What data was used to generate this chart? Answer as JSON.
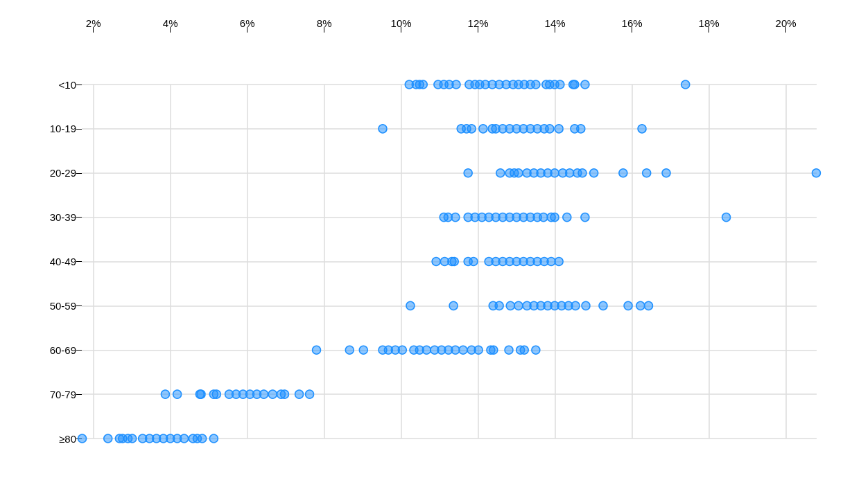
{
  "chart_data": {
    "type": "scatter",
    "orientation": "horizontal",
    "categories": [
      "<10",
      "10-19",
      "20-29",
      "30-39",
      "40-49",
      "50-59",
      "60-69",
      "70-79",
      "≥80"
    ],
    "xlim": [
      1.7,
      20.8
    ],
    "xticks": [
      {
        "value": 2,
        "label": "2%"
      },
      {
        "value": 4,
        "label": "4%"
      },
      {
        "value": 6,
        "label": "6%"
      },
      {
        "value": 8,
        "label": "8%"
      },
      {
        "value": 10,
        "label": "10%"
      },
      {
        "value": 12,
        "label": "12%"
      },
      {
        "value": 14,
        "label": "14%"
      },
      {
        "value": 16,
        "label": "16%"
      },
      {
        "value": 18,
        "label": "18%"
      },
      {
        "value": 20,
        "label": "20%"
      }
    ],
    "grid": true,
    "marker": "circle",
    "series": [
      {
        "color": "#1e90ff",
        "x": [
          "<10",
          "<10",
          "<10",
          "<10",
          "<10",
          "<10",
          "<10",
          "<10",
          "<10",
          "<10",
          "<10",
          "<10",
          "<10",
          "<10",
          "<10",
          "<10",
          "<10",
          "<10",
          "<10",
          "<10",
          "<10",
          "<10",
          "<10",
          "<10",
          "<10",
          "<10",
          "<10",
          "<10",
          "10-19",
          "10-19",
          "10-19",
          "10-19",
          "10-19",
          "10-19",
          "10-19",
          "10-19",
          "10-19",
          "10-19",
          "10-19",
          "10-19",
          "10-19",
          "10-19",
          "10-19",
          "10-19",
          "10-19",
          "10-19",
          "10-19",
          "20-29",
          "20-29",
          "20-29",
          "20-29",
          "20-29",
          "20-29",
          "20-29",
          "20-29",
          "20-29",
          "20-29",
          "20-29",
          "20-29",
          "20-29",
          "20-29",
          "20-29",
          "20-29",
          "20-29",
          "20-29",
          "20-29",
          "30-39",
          "30-39",
          "30-39",
          "30-39",
          "30-39",
          "30-39",
          "30-39",
          "30-39",
          "30-39",
          "30-39",
          "30-39",
          "30-39",
          "30-39",
          "30-39",
          "30-39",
          "30-39",
          "30-39",
          "30-39",
          "30-39",
          "30-39",
          "40-49",
          "40-49",
          "40-49",
          "40-49",
          "40-49",
          "40-49",
          "40-49",
          "40-49",
          "40-49",
          "40-49",
          "40-49",
          "40-49",
          "40-49",
          "40-49",
          "40-49",
          "40-49",
          "40-49",
          "50-59",
          "50-59",
          "50-59",
          "50-59",
          "50-59",
          "50-59",
          "50-59",
          "50-59",
          "50-59",
          "50-59",
          "50-59",
          "50-59",
          "50-59",
          "50-59",
          "50-59",
          "50-59",
          "50-59",
          "50-59",
          "50-59",
          "60-69",
          "60-69",
          "60-69",
          "60-69",
          "60-69",
          "60-69",
          "60-69",
          "60-69",
          "60-69",
          "60-69",
          "60-69",
          "60-69",
          "60-69",
          "60-69",
          "60-69",
          "60-69",
          "60-69",
          "60-69",
          "60-69",
          "60-69",
          "60-69",
          "60-69",
          "60-69",
          "70-79",
          "70-79",
          "70-79",
          "70-79",
          "70-79",
          "70-79",
          "70-79",
          "70-79",
          "70-79",
          "70-79",
          "70-79",
          "70-79",
          "70-79",
          "70-79",
          "70-79",
          "70-79",
          "70-79",
          "≥80",
          "≥80",
          "≥80",
          "≥80",
          "≥80",
          "≥80",
          "≥80",
          "≥80",
          "≥80",
          "≥80",
          "≥80",
          "≥80",
          "≥80",
          "≥80",
          "≥80",
          "≥80",
          "≥80"
        ],
        "values": [
          10.21,
          10.39,
          10.48,
          10.57,
          10.96,
          11.11,
          11.25,
          11.43,
          11.77,
          11.92,
          12.04,
          12.19,
          12.37,
          12.55,
          12.73,
          12.91,
          13.05,
          13.2,
          13.36,
          13.5,
          13.77,
          13.86,
          13.99,
          14.13,
          14.47,
          14.51,
          14.78,
          17.39,
          9.52,
          11.56,
          11.7,
          11.83,
          12.13,
          12.37,
          12.46,
          12.64,
          12.82,
          13.0,
          13.18,
          13.36,
          13.54,
          13.72,
          13.86,
          14.1,
          14.51,
          14.67,
          16.26,
          11.74,
          12.58,
          12.82,
          12.94,
          13.05,
          13.27,
          13.45,
          13.63,
          13.81,
          13.99,
          14.2,
          14.38,
          14.58,
          14.71,
          15.01,
          15.77,
          16.38,
          16.89,
          20.79,
          11.11,
          11.22,
          11.41,
          11.74,
          11.92,
          12.1,
          12.28,
          12.46,
          12.64,
          12.82,
          13.0,
          13.18,
          13.36,
          13.54,
          13.7,
          13.9,
          13.99,
          14.31,
          14.78,
          18.45,
          10.91,
          11.13,
          11.32,
          11.38,
          11.74,
          11.88,
          12.28,
          12.46,
          12.64,
          12.82,
          13.0,
          13.18,
          13.36,
          13.54,
          13.72,
          13.9,
          14.1,
          10.24,
          11.36,
          12.39,
          12.55,
          12.84,
          13.05,
          13.27,
          13.45,
          13.63,
          13.81,
          13.99,
          14.17,
          14.35,
          14.53,
          14.8,
          15.25,
          15.9,
          16.22,
          16.43,
          7.8,
          8.66,
          9.02,
          9.52,
          9.67,
          9.85,
          10.03,
          10.33,
          10.48,
          10.66,
          10.87,
          11.05,
          11.23,
          11.41,
          11.61,
          11.83,
          12.01,
          12.33,
          12.4,
          12.8,
          13.1,
          13.2,
          13.5,
          3.87,
          4.18,
          4.77,
          4.8,
          5.13,
          5.2,
          5.53,
          5.71,
          5.89,
          6.07,
          6.25,
          6.43,
          6.66,
          6.88,
          6.97,
          7.35,
          7.62,
          1.71,
          2.38,
          2.68,
          2.76,
          2.9,
          3.01,
          3.28,
          3.46,
          3.64,
          3.82,
          4.0,
          4.18,
          4.36,
          4.59,
          4.7,
          4.83,
          5.13
        ]
      }
    ]
  }
}
